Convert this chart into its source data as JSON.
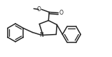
{
  "bg_color": "#ffffff",
  "line_color": "#222222",
  "line_width": 1.1,
  "figsize": [
    1.6,
    0.82
  ],
  "dpi": 100,
  "xlim": [
    0,
    160
  ],
  "ylim": [
    0,
    82
  ]
}
